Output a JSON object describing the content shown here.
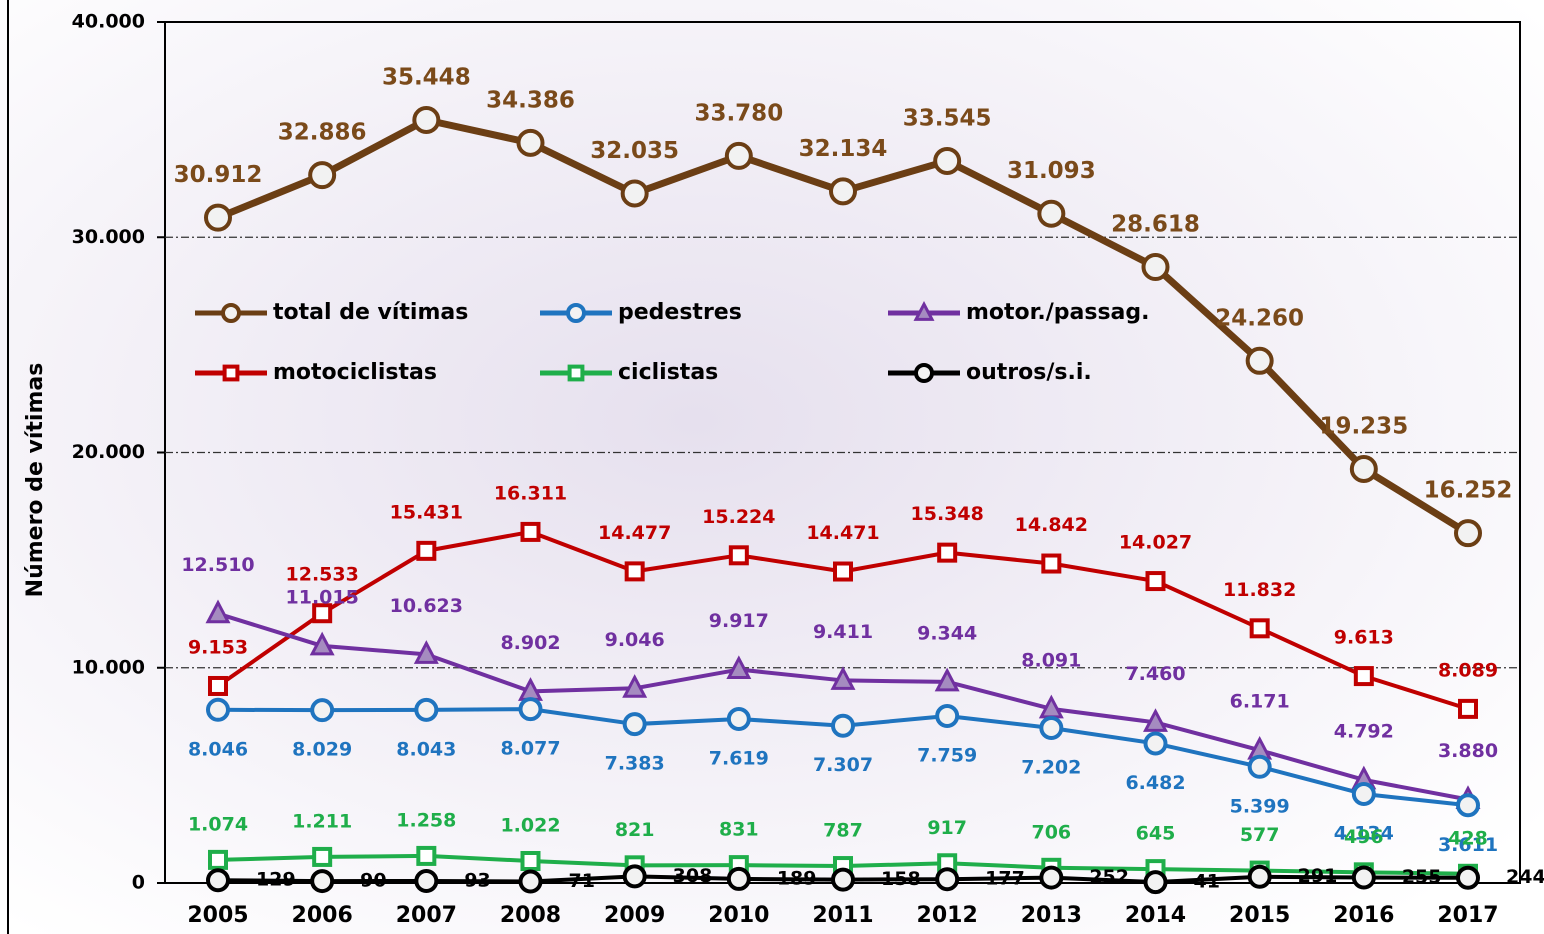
{
  "chart_data": {
    "type": "line",
    "y_label": "Número de vítimas",
    "categories": [
      "2005",
      "2006",
      "2007",
      "2008",
      "2009",
      "2010",
      "2011",
      "2012",
      "2013",
      "2014",
      "2015",
      "2016",
      "2017"
    ],
    "ylim": [
      0,
      40000
    ],
    "yticks": [
      0,
      {
        "value": 10000,
        "label": "10.000"
      },
      {
        "value": 20000,
        "label": "20.000"
      },
      {
        "value": 30000,
        "label": "30.000"
      },
      {
        "value": 40000,
        "label": "40.000"
      }
    ],
    "grid": true,
    "series": [
      {
        "name": "total de vítimas",
        "color": "#6b3e14",
        "marker": "circle",
        "values": [
          30912,
          32886,
          35448,
          34386,
          32035,
          33780,
          32134,
          33545,
          31093,
          28618,
          24260,
          19235,
          16252
        ],
        "value_labels": [
          "30.912",
          "32.886",
          "35.448",
          "34.386",
          "32.035",
          "33.780",
          "32.134",
          "33.545",
          "31.093",
          "28.618",
          "24.260",
          "19.235",
          "16.252"
        ]
      },
      {
        "name": "pedestres",
        "color": "#1f74bf",
        "marker": "circle",
        "values": [
          8046,
          8029,
          8043,
          8077,
          7383,
          7619,
          7307,
          7759,
          7202,
          6482,
          5399,
          4134,
          3611
        ],
        "value_labels": [
          "8.046",
          "8.029",
          "8.043",
          "8.077",
          "7.383",
          "7.619",
          "7.307",
          "7.759",
          "7.202",
          "6.482",
          "5.399",
          "4.134",
          "3.611"
        ]
      },
      {
        "name": "motor./passag.",
        "color": "#7030a0",
        "marker": "triangle",
        "values": [
          12510,
          11015,
          10623,
          8902,
          9046,
          9917,
          9411,
          9344,
          8091,
          7460,
          6171,
          4792,
          3880
        ],
        "value_labels": [
          "12.510",
          "11.015",
          "10.623",
          "8.902",
          "9.046",
          "9.917",
          "9.411",
          "9.344",
          "8.091",
          "7.460",
          "6.171",
          "4.792",
          "3.880"
        ]
      },
      {
        "name": "motociclistas",
        "color": "#c00000",
        "marker": "square",
        "values": [
          9153,
          12533,
          15431,
          16311,
          14477,
          15224,
          14471,
          15348,
          14842,
          14027,
          11832,
          9613,
          8089
        ],
        "value_labels": [
          "9.153",
          "12.533",
          "15.431",
          "16.311",
          "14.477",
          "15.224",
          "14.471",
          "15.348",
          "14.842",
          "14.027",
          "11.832",
          "9.613",
          "8.089"
        ]
      },
      {
        "name": "ciclistas",
        "color": "#1fae4a",
        "marker": "square",
        "values": [
          1074,
          1211,
          1258,
          1022,
          821,
          831,
          787,
          917,
          706,
          645,
          577,
          496,
          428
        ],
        "value_labels": [
          "1.074",
          "1.211",
          "1.258",
          "1.022",
          "821",
          "831",
          "787",
          "917",
          "706",
          "645",
          "577",
          "496",
          "428"
        ]
      },
      {
        "name": "outros/s.i.",
        "color": "#000000",
        "marker": "circle",
        "values": [
          129,
          90,
          93,
          71,
          308,
          189,
          158,
          177,
          252,
          41,
          291,
          255,
          244
        ],
        "value_labels": [
          "129",
          "90",
          "93",
          "71",
          "308",
          "189",
          "158",
          "177",
          "252",
          "41",
          "291",
          "255",
          "244"
        ]
      }
    ]
  }
}
